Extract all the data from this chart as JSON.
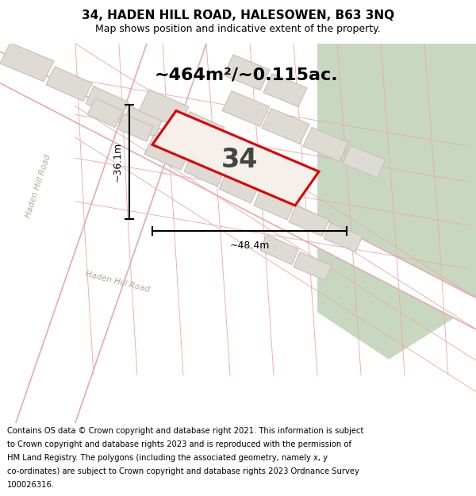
{
  "title": "34, HADEN HILL ROAD, HALESOWEN, B63 3NQ",
  "subtitle": "Map shows position and indicative extent of the property.",
  "footer_lines": [
    "Contains OS data © Crown copyright and database right 2021. This information is subject",
    "to Crown copyright and database rights 2023 and is reproduced with the permission of",
    "HM Land Registry. The polygons (including the associated geometry, namely x, y",
    "co-ordinates) are subject to Crown copyright and database rights 2023 Ordnance Survey",
    "100026316."
  ],
  "area_text": "~464m²/~0.115ac.",
  "width_label": "~48.4m",
  "height_label": "~36.1m",
  "property_number": "34",
  "map_bg": "#eeebe5",
  "road_fill": "#ffffff",
  "road_line_color": "#e8aaaa",
  "building_color": "#dedad4",
  "building_edge": "#c8c0b8",
  "green_area": "#c8d8c0",
  "property_outline": "#dd0000",
  "property_fill": "#f5f0ea",
  "dim_line_color": "#000000",
  "title_color": "#000000",
  "footer_color": "#000000",
  "road_label_color": "#b0a8a0",
  "figsize": [
    6.0,
    6.25
  ],
  "dpi": 100
}
